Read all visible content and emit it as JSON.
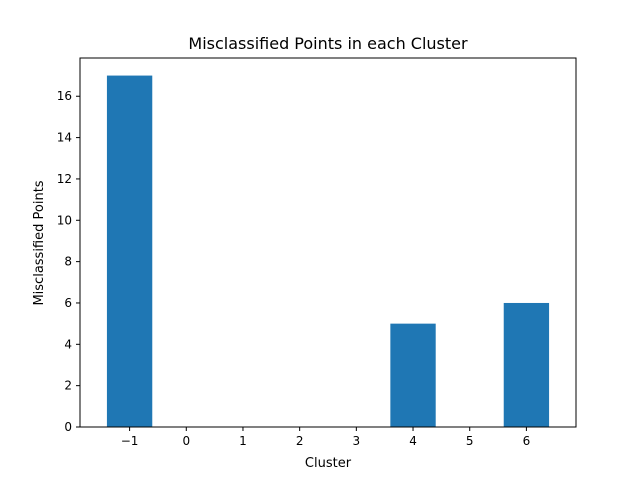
{
  "chart_data": {
    "type": "bar",
    "title": "Misclassified Points in each Cluster",
    "xlabel": "Cluster",
    "ylabel": "Misclassified Points",
    "x": [
      -1,
      4,
      6
    ],
    "values": [
      17,
      5,
      6
    ],
    "bar_width": 0.8,
    "xlim": [
      -1.875,
      6.875
    ],
    "ylim": [
      0,
      17.85
    ],
    "x_ticks": [
      -1,
      0,
      1,
      2,
      3,
      4,
      5,
      6
    ],
    "x_tick_labels": [
      "−1",
      "0",
      "1",
      "2",
      "3",
      "4",
      "5",
      "6"
    ],
    "y_ticks": [
      0,
      2,
      4,
      6,
      8,
      10,
      12,
      14,
      16
    ],
    "y_tick_labels": [
      "0",
      "2",
      "4",
      "6",
      "8",
      "10",
      "12",
      "14",
      "16"
    ],
    "bar_color": "#1f77b4",
    "grid": false,
    "legend": "none"
  }
}
